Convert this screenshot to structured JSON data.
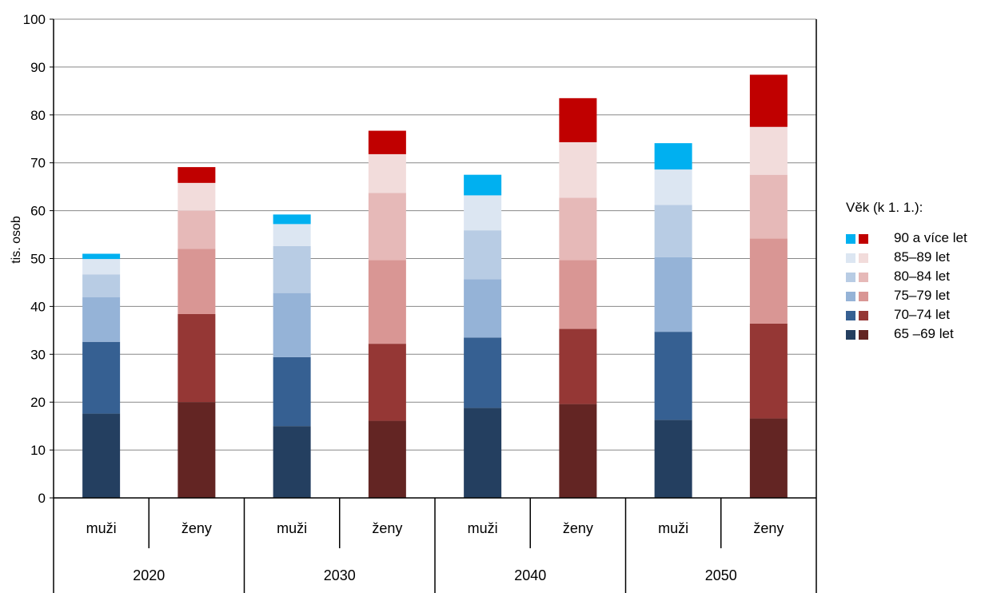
{
  "chart_data": {
    "type": "bar",
    "stacked": true,
    "title": "",
    "ylabel": "tis. osob",
    "ylim": [
      0,
      100
    ],
    "yticks": [
      0,
      10,
      20,
      30,
      40,
      50,
      60,
      70,
      80,
      90,
      100
    ],
    "grid": true,
    "legend_position": "right",
    "groups": [
      {
        "year": "2020",
        "bars": [
          {
            "label": "muži",
            "sex": "m",
            "values": [
              17.6,
              15.0,
              9.3,
              4.8,
              3.2,
              1.1
            ]
          },
          {
            "label": "ženy",
            "sex": "f",
            "values": [
              20.0,
              18.4,
              13.6,
              8.0,
              5.8,
              3.3
            ]
          }
        ]
      },
      {
        "year": "2030",
        "bars": [
          {
            "label": "muži",
            "sex": "m",
            "values": [
              15.0,
              14.4,
              13.4,
              9.8,
              4.6,
              2.0
            ]
          },
          {
            "label": "ženy",
            "sex": "f",
            "values": [
              16.1,
              16.1,
              17.5,
              14.0,
              8.1,
              4.9
            ]
          }
        ]
      },
      {
        "year": "2040",
        "bars": [
          {
            "label": "muži",
            "sex": "m",
            "values": [
              18.8,
              14.7,
              12.2,
              10.2,
              7.3,
              4.3
            ]
          },
          {
            "label": "ženy",
            "sex": "f",
            "values": [
              19.6,
              15.7,
              14.4,
              13.0,
              11.6,
              9.2
            ]
          }
        ]
      },
      {
        "year": "2050",
        "bars": [
          {
            "label": "muži",
            "sex": "m",
            "values": [
              16.3,
              18.4,
              15.6,
              10.9,
              7.4,
              5.5
            ]
          },
          {
            "label": "ženy",
            "sex": "f",
            "values": [
              16.6,
              19.8,
              17.8,
              13.3,
              10.0,
              10.9
            ]
          }
        ]
      }
    ],
    "series": [
      {
        "name": "65 –69 let",
        "color_m": "#243f60",
        "color_f": "#632523"
      },
      {
        "name": "70–74 let",
        "color_m": "#366092",
        "color_f": "#953735"
      },
      {
        "name": "75–79 let",
        "color_m": "#95b3d7",
        "color_f": "#d99694"
      },
      {
        "name": "80–84 let",
        "color_m": "#b8cce4",
        "color_f": "#e6b9b8"
      },
      {
        "name": "85–89 let",
        "color_m": "#dce6f2",
        "color_f": "#f2dcdb"
      },
      {
        "name": "90 a více let",
        "color_m": "#00b0f0",
        "color_f": "#c00000"
      }
    ],
    "legend_title": "Věk (k 1. 1.):"
  }
}
